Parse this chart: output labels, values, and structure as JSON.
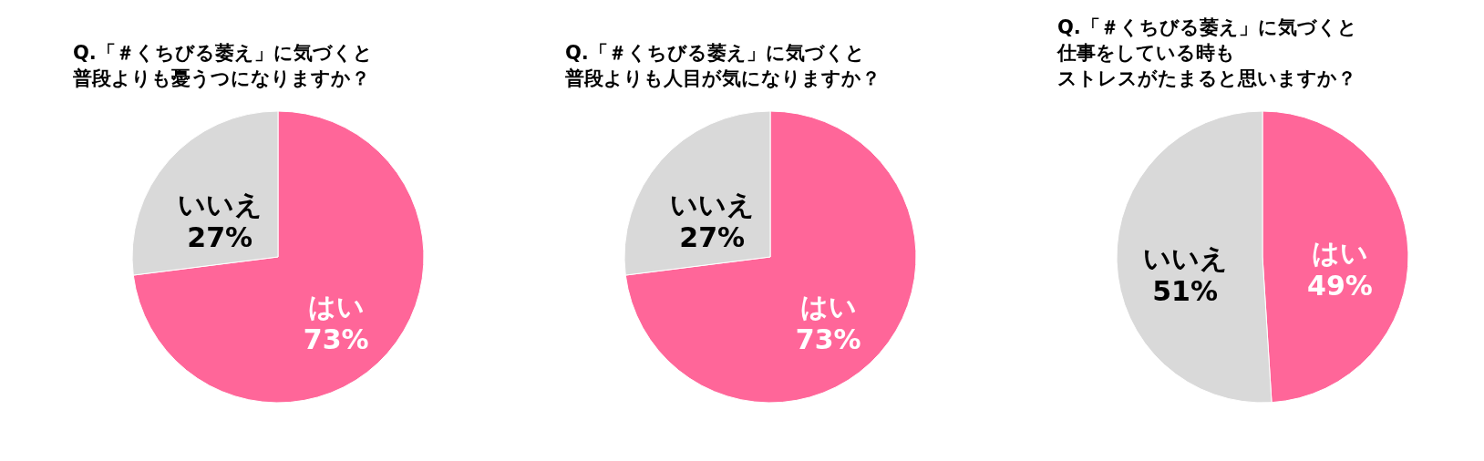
{
  "chart_data": [
    {
      "type": "pie",
      "title": "Q.「＃くちびる萎え」に気づくと普段よりも憂うつになりますか？",
      "categories": [
        "はい",
        "いいえ"
      ],
      "values": [
        73,
        27
      ],
      "colors": [
        "#ff6699",
        "#d9d9d9"
      ],
      "value_labels": [
        "73%",
        "27%"
      ]
    },
    {
      "type": "pie",
      "title": "Q.「＃くちびる萎え」に気づくと普段よりも人目が気になりますか？",
      "categories": [
        "はい",
        "いいえ"
      ],
      "values": [
        73,
        27
      ],
      "colors": [
        "#ff6699",
        "#d9d9d9"
      ],
      "value_labels": [
        "73%",
        "27%"
      ]
    },
    {
      "type": "pie",
      "title": "Q.「＃くちびる萎え」に気づくと仕事をしている時もストレスがたまると思いますか？",
      "categories": [
        "はい",
        "いいえ"
      ],
      "values": [
        49,
        51
      ],
      "colors": [
        "#ff6699",
        "#d9d9d9"
      ],
      "value_labels": [
        "49%",
        "51%"
      ]
    }
  ]
}
